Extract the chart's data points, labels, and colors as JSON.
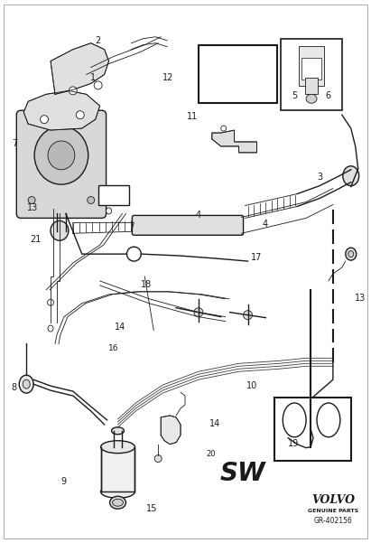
{
  "background_color": "#ffffff",
  "line_color": "#1a1a1a",
  "label_color": "#1a1a1a",
  "fig_width": 4.11,
  "fig_height": 6.01,
  "dpi": 100,
  "volvo_text": "VOLVO",
  "volvo_sub": "GENUINE PARTS",
  "ref_code": "GR-402156",
  "sw_label": "SW",
  "part20_label": "20"
}
